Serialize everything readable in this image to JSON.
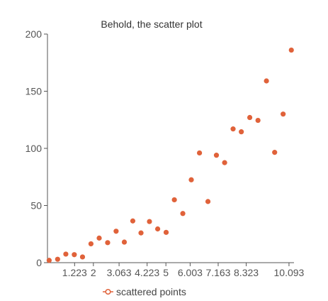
{
  "chart_data": {
    "type": "scatter",
    "title": "Behold, the scatter plot",
    "xlabel": "",
    "ylabel": "",
    "xlim": [
      0.1,
      10.3
    ],
    "ylim": [
      0,
      200
    ],
    "x_ticks": [
      {
        "value": 1.223,
        "label": "1.223"
      },
      {
        "value": 2,
        "label": "2"
      },
      {
        "value": 3.063,
        "label": "3.063"
      },
      {
        "value": 4.223,
        "label": "4.223"
      },
      {
        "value": 5,
        "label": "5"
      },
      {
        "value": 6.003,
        "label": "6.003"
      },
      {
        "value": 7.163,
        "label": "7.163"
      },
      {
        "value": 8.323,
        "label": "8.323"
      },
      {
        "value": 10.093,
        "label": "10.093"
      }
    ],
    "y_ticks": [
      {
        "value": 0,
        "label": "0"
      },
      {
        "value": 50,
        "label": "50"
      },
      {
        "value": 100,
        "label": "100"
      },
      {
        "value": 150,
        "label": "150"
      },
      {
        "value": 200,
        "label": "200"
      }
    ],
    "grid": false,
    "legend_position": "bottom",
    "series": [
      {
        "name": "scattered points",
        "color": "#e0623a",
        "points": [
          {
            "x": 0.17,
            "y": 2
          },
          {
            "x": 0.52,
            "y": 3
          },
          {
            "x": 0.86,
            "y": 7.5
          },
          {
            "x": 1.21,
            "y": 7
          },
          {
            "x": 1.55,
            "y": 5
          },
          {
            "x": 1.9,
            "y": 16.5
          },
          {
            "x": 2.24,
            "y": 21.5
          },
          {
            "x": 2.59,
            "y": 17.5
          },
          {
            "x": 2.94,
            "y": 27.5
          },
          {
            "x": 3.28,
            "y": 18
          },
          {
            "x": 3.63,
            "y": 36.5
          },
          {
            "x": 3.97,
            "y": 26
          },
          {
            "x": 4.32,
            "y": 36
          },
          {
            "x": 4.66,
            "y": 29.5
          },
          {
            "x": 5.01,
            "y": 26.5
          },
          {
            "x": 5.35,
            "y": 55
          },
          {
            "x": 5.7,
            "y": 43
          },
          {
            "x": 6.05,
            "y": 72.5
          },
          {
            "x": 6.39,
            "y": 96
          },
          {
            "x": 6.74,
            "y": 53.5
          },
          {
            "x": 7.09,
            "y": 94
          },
          {
            "x": 7.43,
            "y": 87.5
          },
          {
            "x": 7.78,
            "y": 117
          },
          {
            "x": 8.12,
            "y": 114.5
          },
          {
            "x": 8.47,
            "y": 127
          },
          {
            "x": 8.81,
            "y": 124.5
          },
          {
            "x": 9.16,
            "y": 159
          },
          {
            "x": 9.5,
            "y": 96.5
          },
          {
            "x": 9.85,
            "y": 130
          },
          {
            "x": 10.19,
            "y": 186
          }
        ]
      }
    ]
  }
}
